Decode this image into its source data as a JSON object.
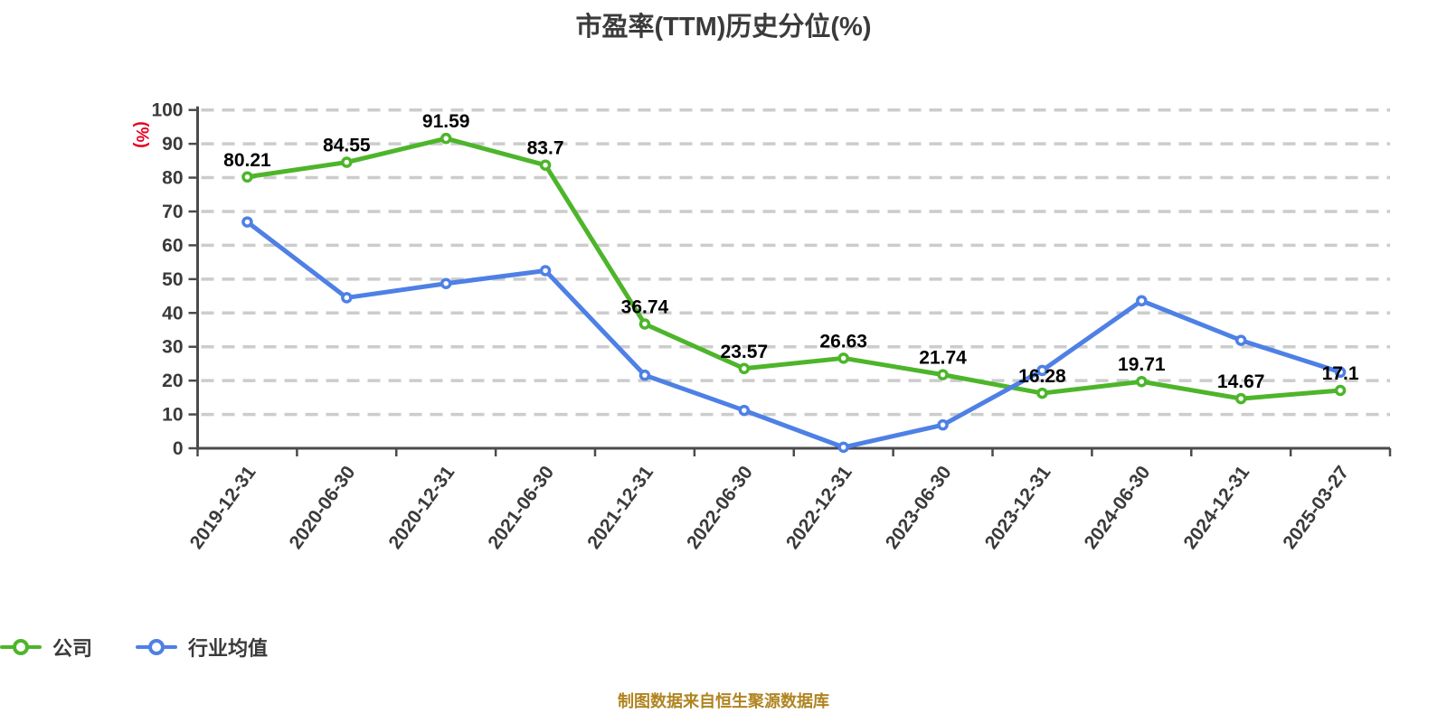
{
  "title": "市盈率(TTM)历史分位(%)",
  "y_axis_unit": "(%)",
  "footer": "制图数据来自恒生聚源数据库",
  "legend": [
    {
      "label": "公司",
      "color": "#4db52a"
    },
    {
      "label": "行业均值",
      "color": "#4e80e5"
    }
  ],
  "colors": {
    "company_line": "#4db52a",
    "industry_line": "#4e80e5",
    "grid": "#cccccc",
    "axis": "#4b4b4b",
    "tick_label": "#3a3a3a",
    "data_label": "#000000",
    "title": "#3b3b3b",
    "unit_label": "#e60021",
    "footer": "#b08420",
    "marker_fill": "#ffffff",
    "background": "#ffffff"
  },
  "chart_data": {
    "type": "line",
    "title": "市盈率(TTM)历史分位(%)",
    "ylabel": "(%)",
    "ylim": [
      0,
      100
    ],
    "y_ticks": [
      0,
      10,
      20,
      30,
      40,
      50,
      60,
      70,
      80,
      90,
      100
    ],
    "grid": "horizontal-dashed",
    "legend_position": "bottom",
    "categories": [
      "2019-12-31",
      "2020-06-30",
      "2020-12-31",
      "2021-06-30",
      "2021-12-31",
      "2022-06-30",
      "2022-12-31",
      "2023-06-30",
      "2023-12-31",
      "2024-06-30",
      "2024-12-31",
      "2025-03-27"
    ],
    "series": [
      {
        "name": "公司",
        "color": "#4db52a",
        "show_labels": true,
        "values": [
          80.21,
          84.55,
          91.59,
          83.7,
          36.74,
          23.57,
          26.63,
          21.74,
          16.28,
          19.71,
          14.67,
          17.1
        ]
      },
      {
        "name": "行业均值",
        "color": "#4e80e5",
        "show_labels": false,
        "values": [
          66.9,
          44.5,
          48.7,
          52.5,
          21.6,
          11.2,
          0.3,
          6.9,
          23.0,
          43.6,
          31.9,
          22.5
        ]
      }
    ]
  }
}
